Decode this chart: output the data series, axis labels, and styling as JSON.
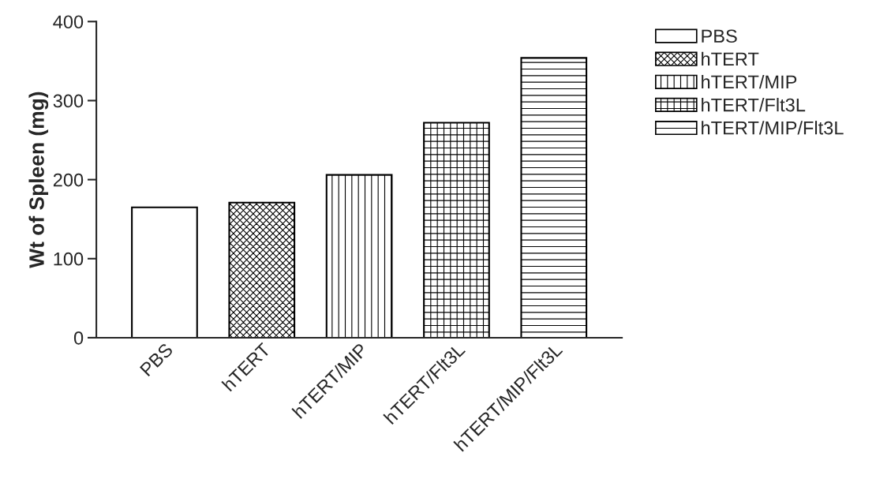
{
  "chart_data": {
    "type": "bar",
    "ylabel": "Wt of Spleen (mg)",
    "categories": [
      "PBS",
      "hTERT",
      "hTERT/MIP",
      "hTERT/Flt3L",
      "hTERT/MIP/Flt3L"
    ],
    "series": [
      {
        "name": "PBS",
        "color": "#ffffff",
        "values": [
          165,
          null,
          null,
          null,
          null
        ]
      },
      {
        "name": "hTERT",
        "color": "#000000",
        "values": [
          null,
          171,
          null,
          null,
          null
        ]
      },
      {
        "name": "hTERT/MIP",
        "color": "#000000",
        "values": [
          null,
          null,
          206,
          null,
          null
        ]
      },
      {
        "name": "hTERT/Flt3L",
        "color": "#000000",
        "values": [
          null,
          null,
          null,
          272,
          null
        ]
      },
      {
        "name": "hTERT/MIP/Flt3L",
        "color": "#000000",
        "values": [
          null,
          null,
          null,
          null,
          354
        ]
      }
    ],
    "ylim": [
      0,
      400
    ],
    "yticks": [
      0,
      100,
      200,
      300,
      400
    ],
    "grid": false,
    "legend": "top right"
  }
}
